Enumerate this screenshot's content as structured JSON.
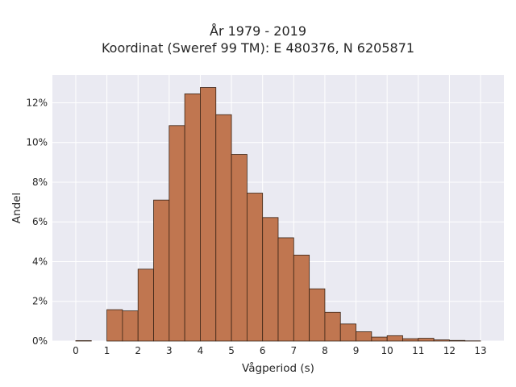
{
  "chart_data": {
    "type": "bar",
    "title": "År 1979 - 2019",
    "subtitle": "Koordinat (Sweref 99 TM): E 480376, N 6205871",
    "xlabel": "Vågperiod (s)",
    "ylabel": "Andel",
    "bin_width": 0.5,
    "bins_start": [
      0,
      0.5,
      1,
      1.5,
      2,
      2.5,
      3,
      3.5,
      4,
      4.5,
      5,
      5.5,
      6,
      6.5,
      7,
      7.5,
      8,
      8.5,
      9,
      9.5,
      10,
      10.5,
      11,
      11.5,
      12,
      12.5
    ],
    "values": [
      0.02,
      0.0,
      1.58,
      1.52,
      3.62,
      7.1,
      10.85,
      12.45,
      12.77,
      11.4,
      9.4,
      7.45,
      6.22,
      5.2,
      4.33,
      2.63,
      1.45,
      0.86,
      0.47,
      0.2,
      0.27,
      0.12,
      0.14,
      0.06,
      0.03,
      0.01
    ],
    "xlim": [
      -0.75,
      13.75
    ],
    "ylim": [
      0,
      13.4
    ],
    "xticks": [
      0,
      1,
      2,
      3,
      4,
      5,
      6,
      7,
      8,
      9,
      10,
      11,
      12,
      13
    ],
    "yticks": [
      0,
      2,
      4,
      6,
      8,
      10,
      12
    ],
    "ytick_suffix": "%",
    "grid": true,
    "colors": {
      "bar": "#c07650",
      "bar_edge": "#3a2416",
      "plot_bg": "#eaeaf2",
      "grid": "#ffffff"
    }
  }
}
